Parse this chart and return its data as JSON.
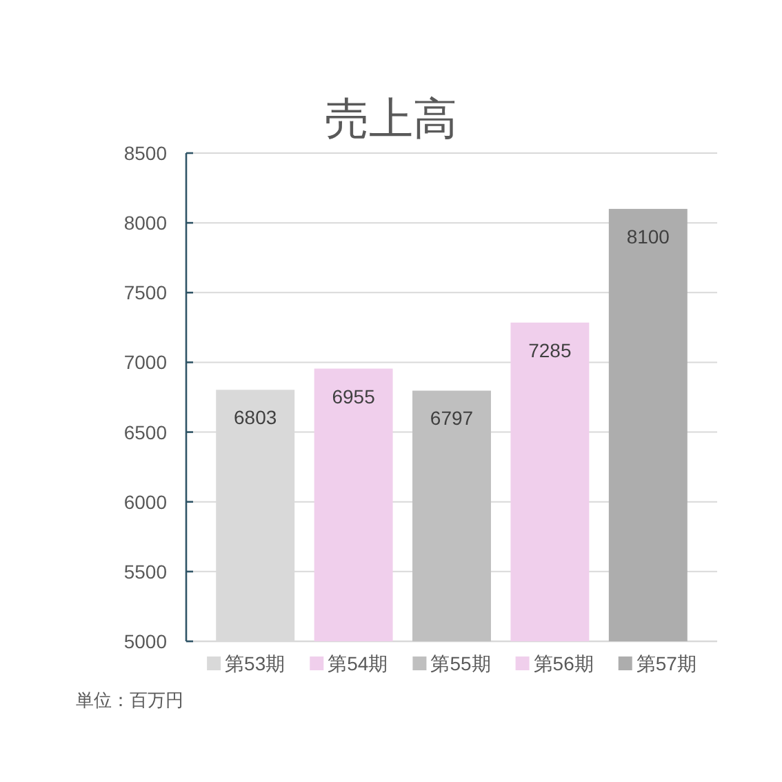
{
  "chart_data": {
    "type": "bar",
    "title": "売上高",
    "categories": [
      null,
      null,
      null,
      null,
      null
    ],
    "series": [
      {
        "name": "第53期",
        "color": "#d9d9d9",
        "values": [
          6803,
          null,
          null,
          null,
          null
        ]
      },
      {
        "name": "第54期",
        "color": "#f0cfec",
        "values": [
          null,
          6955,
          null,
          null,
          null
        ]
      },
      {
        "name": "第55期",
        "color": "#bfbfbf",
        "values": [
          null,
          null,
          6797,
          null,
          null
        ]
      },
      {
        "name": "第56期",
        "color": "#f0cfec",
        "values": [
          null,
          null,
          null,
          7285,
          null
        ]
      },
      {
        "name": "第57期",
        "color": "#adadad",
        "values": [
          null,
          null,
          null,
          null,
          8100
        ]
      }
    ],
    "ylim": [
      5000,
      8500
    ],
    "yticks": [
      5000,
      5500,
      6000,
      6500,
      7000,
      7500,
      8000,
      8500
    ],
    "grid": "y",
    "legend": "bottom",
    "data_labels": true,
    "annotations": [
      "単位：百万円"
    ]
  }
}
